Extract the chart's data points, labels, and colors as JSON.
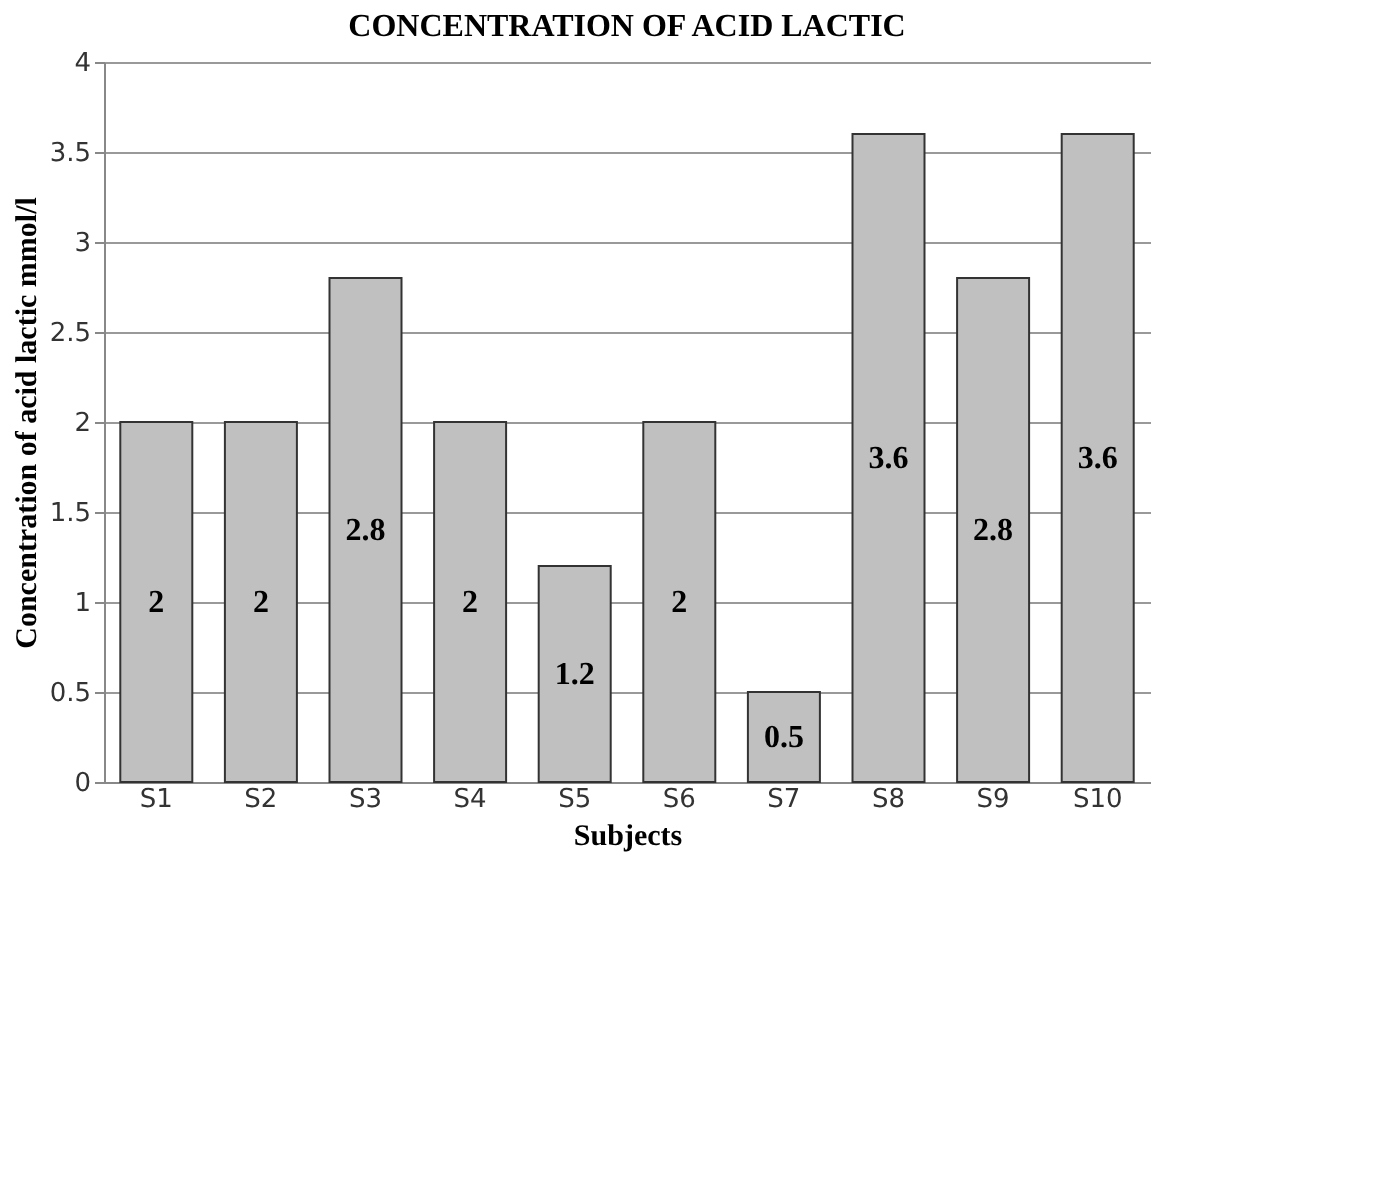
{
  "chart_data": {
    "type": "bar",
    "title": "CONCENTRATION OF ACID LACTIC",
    "xlabel": "Subjects",
    "ylabel": "Concentration of acid lactic mmol/l",
    "categories": [
      "S1",
      "S2",
      "S3",
      "S4",
      "S5",
      "S6",
      "S7",
      "S8",
      "S9",
      "S10"
    ],
    "values": [
      2,
      2,
      2.8,
      2,
      1.2,
      2,
      0.5,
      3.6,
      2.8,
      3.6
    ],
    "color": "#c0c0c0",
    "ylim": [
      0,
      4
    ],
    "yticks": [
      0,
      0.5,
      1,
      1.5,
      2,
      2.5,
      3,
      3.5,
      4
    ],
    "grid": "y",
    "data_labels": true
  }
}
